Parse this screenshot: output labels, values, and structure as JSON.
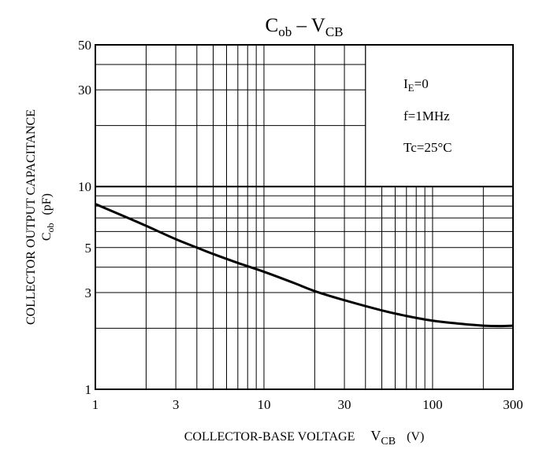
{
  "chart_data": {
    "type": "line",
    "title": {
      "main": "C",
      "sub1": "ob",
      "dash": " – ",
      "main2": "V",
      "sub2": "CB"
    },
    "xlabel": {
      "text": "COLLECTOR-BASE VOLTAGE",
      "sym": "V",
      "sub": "CB",
      "unit": "(V)"
    },
    "ylabel": {
      "line1": "COLLECTOR OUTPUT CAPACITANCE",
      "sym": "C",
      "sub": "ob",
      "unit": "(pF)"
    },
    "x_scale": "log",
    "y_scale": "log",
    "xlim": [
      1,
      300
    ],
    "ylim": [
      1,
      50
    ],
    "grid": true,
    "x_tick_labels": [
      "1",
      "3",
      "10",
      "30",
      "100",
      "300"
    ],
    "y_tick_labels": [
      "1",
      "3",
      "5",
      "10",
      "30",
      "50"
    ],
    "conditions": [
      {
        "sym": "I",
        "sub": "E",
        "rest": "=0"
      },
      {
        "sym": "f",
        "sub": "",
        "rest": "=1MHz"
      },
      {
        "sym": "Tc",
        "sub": "",
        "rest": "=25°C"
      }
    ],
    "series": [
      {
        "x": [
          1,
          1.5,
          2,
          3,
          4,
          5,
          7,
          10,
          15,
          20,
          30,
          50,
          70,
          100,
          150,
          200,
          250,
          300
        ],
        "y": [
          8.2,
          7.1,
          6.4,
          5.5,
          5.0,
          4.65,
          4.2,
          3.8,
          3.35,
          3.05,
          2.75,
          2.45,
          2.3,
          2.18,
          2.1,
          2.06,
          2.05,
          2.06
        ]
      }
    ]
  }
}
